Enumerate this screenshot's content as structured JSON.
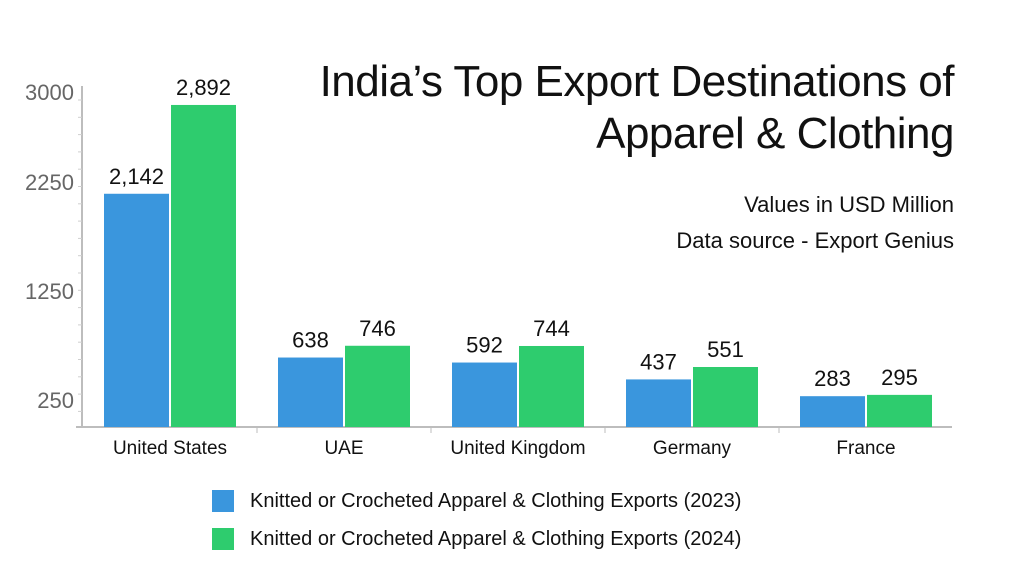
{
  "chart_data": {
    "type": "bar",
    "title_lines": [
      "India’s Top Export Destinations of",
      "Apparel & Clothing"
    ],
    "subtitle_lines": [
      "Values in USD Million",
      "Data source - Export Genius"
    ],
    "categories": [
      "United States",
      "UAE",
      "United Kingdom",
      "Germany",
      "France"
    ],
    "series": [
      {
        "name": "Knitted or Crocheted Apparel & Clothing Exports (2023)",
        "values": [
          2142,
          638,
          592,
          437,
          283
        ],
        "labels": [
          "2,142",
          "638",
          "592",
          "437",
          "283"
        ],
        "color": "#3a96dd"
      },
      {
        "name": "Knitted or Crocheted Apparel & Clothing Exports (2024)",
        "values": [
          2892,
          746,
          744,
          551,
          295
        ],
        "labels": [
          "2,892",
          "746",
          "744",
          "551",
          "295"
        ],
        "color": "#2ecc6e"
      }
    ],
    "ticks": [
      250,
      1250,
      2250,
      3000
    ],
    "tick_labels": [
      "250",
      "1250",
      "2250",
      "3000"
    ],
    "ylim": [
      0,
      3000
    ],
    "xlabel": "",
    "ylabel": "",
    "grid": false,
    "legend_position": "bottom"
  }
}
